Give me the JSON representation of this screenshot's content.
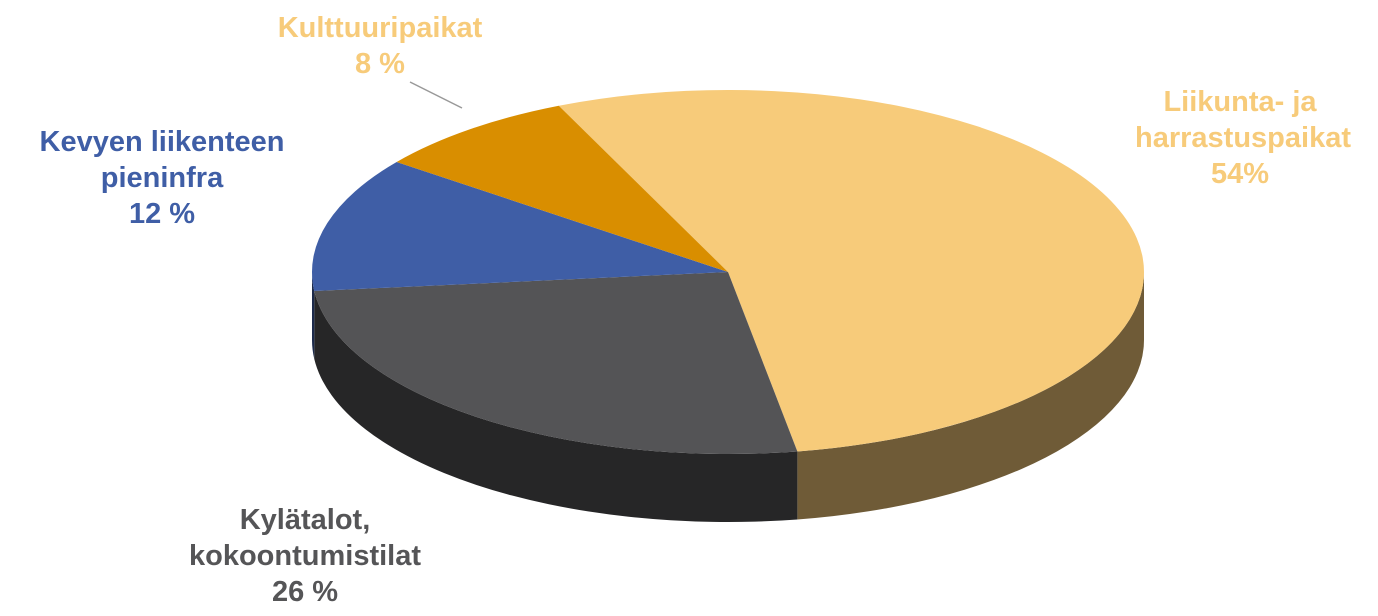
{
  "chart_data": {
    "type": "pie",
    "categories": [
      "Liikunta- ja harrastuspaikat",
      "Kylätalot, kokoontumistilat",
      "Kevyen liikenteen pieninfra",
      "Kulttuuripaikat"
    ],
    "values": [
      54,
      26,
      12,
      8
    ],
    "value_labels": [
      "54%",
      "26 %",
      "12 %",
      "8 %"
    ],
    "colors": [
      "#f7cb7a",
      "#545456",
      "#3f5ea6",
      "#d98e00"
    ]
  }
}
